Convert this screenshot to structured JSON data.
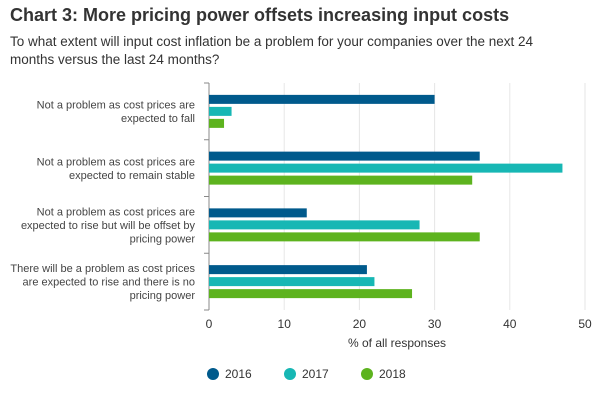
{
  "title": "Chart 3: More pricing power offsets increasing input costs",
  "subtitle": "To what extent will input cost inflation be a problem for your companies over the next 24 months versus the last 24 months?",
  "chart_data": {
    "type": "bar",
    "orientation": "horizontal",
    "categories": [
      [
        "Not a problem as cost prices are",
        "expected to fall"
      ],
      [
        "Not a problem as cost prices are",
        "expected to remain stable"
      ],
      [
        "Not a problem as cost prices are",
        "expected to rise but will be offset by",
        "pricing power"
      ],
      [
        "There will be a problem as cost prices",
        "are expected to rise and there is no",
        "pricing power"
      ]
    ],
    "series": [
      {
        "name": "2016",
        "color": "#005a8c",
        "values": [
          30,
          36,
          13,
          21
        ]
      },
      {
        "name": "2017",
        "color": "#17b7b4",
        "values": [
          3,
          47,
          28,
          22
        ]
      },
      {
        "name": "2018",
        "color": "#5db31e",
        "values": [
          2,
          35,
          36,
          27
        ]
      }
    ],
    "xlabel": "% of all responses",
    "xlim": [
      0,
      50
    ],
    "xticks": [
      0,
      10,
      20,
      30,
      40,
      50
    ],
    "grid": true,
    "legend_position": "bottom"
  }
}
